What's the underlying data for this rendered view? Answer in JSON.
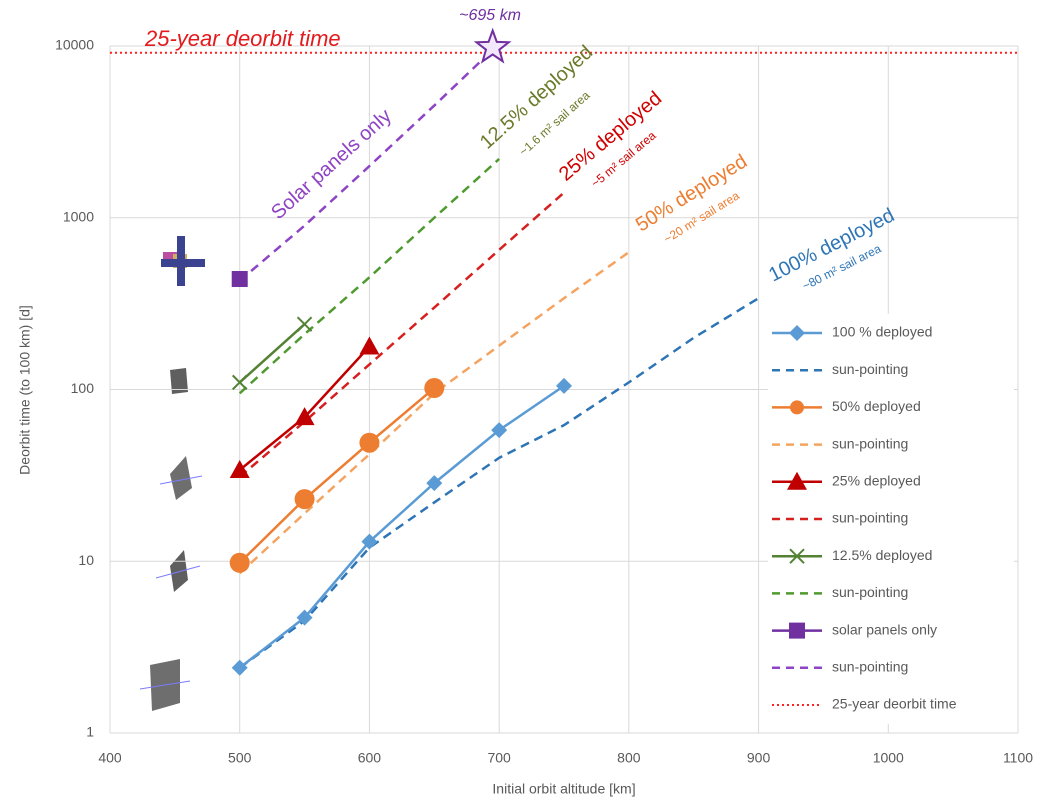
{
  "chart_data": {
    "type": "line",
    "y_label": "Deorbit time (to 100 km) [d]",
    "x_label": "Initial orbit altitude [km]",
    "xlim": [
      400,
      1100
    ],
    "xticks": [
      400,
      500,
      600,
      700,
      800,
      900,
      1000,
      1100
    ],
    "ylim": [
      1,
      10000
    ],
    "yticks": [
      1,
      10,
      100,
      1000,
      10000
    ],
    "log_y": true,
    "grid": true,
    "legend_position": "right",
    "series": [
      {
        "name": "100 % deployed",
        "color": "#5b9bd5",
        "dash": "solid",
        "marker": "diamond",
        "x": [
          500,
          550,
          600,
          650,
          700,
          750
        ],
        "values": [
          2.4,
          4.7,
          13,
          28.5,
          58,
          105
        ]
      },
      {
        "name": "sun-pointing",
        "color": "#2e75b6",
        "dash": "dashed",
        "marker": "none",
        "x": [
          500,
          550,
          600,
          650,
          700,
          750,
          800,
          850,
          900
        ],
        "values": [
          2.4,
          4.5,
          12,
          22,
          40,
          62,
          110,
          200,
          340
        ]
      },
      {
        "name": "50% deployed",
        "color": "#ed7d31",
        "dash": "solid",
        "marker": "circle",
        "x": [
          500,
          550,
          600,
          650
        ],
        "values": [
          9.8,
          23,
          49,
          102
        ]
      },
      {
        "name": "sun-pointing",
        "color": "#f4a460",
        "dash": "dashed",
        "marker": "none",
        "x": [
          500,
          550,
          600,
          650,
          700,
          750,
          800
        ],
        "values": [
          8.5,
          19,
          42,
          95,
          180,
          340,
          630
        ]
      },
      {
        "name": "25% deployed",
        "color": "#c00000",
        "dash": "solid",
        "marker": "triangle",
        "x": [
          500,
          550,
          600
        ],
        "values": [
          34,
          69,
          178
        ]
      },
      {
        "name": "sun-pointing",
        "color": "#d62020",
        "dash": "dashed",
        "marker": "none",
        "x": [
          500,
          550,
          600,
          650,
          700,
          750
        ],
        "values": [
          31,
          65,
          140,
          300,
          650,
          1400
        ]
      },
      {
        "name": "12.5% deployed",
        "color": "#548235",
        "dash": "solid",
        "marker": "x",
        "x": [
          500,
          550
        ],
        "values": [
          110,
          240
        ]
      },
      {
        "name": "sun-pointing",
        "color": "#4f9a2f",
        "dash": "dashed",
        "marker": "none",
        "x": [
          500,
          550,
          600,
          650,
          700
        ],
        "values": [
          95,
          210,
          450,
          1000,
          2200
        ]
      },
      {
        "name": "solar panels only",
        "color": "#7030a0",
        "dash": "solid",
        "marker": "square",
        "x": [
          500
        ],
        "values": [
          440
        ]
      },
      {
        "name": "sun-pointing",
        "color": "#8e44c4",
        "dash": "dashed",
        "marker": "none",
        "x": [
          500,
          550,
          600,
          650,
          695
        ],
        "values": [
          430,
          900,
          2000,
          4500,
          9500
        ]
      }
    ],
    "reference_line": {
      "name": "25-year deorbit time",
      "color": "#ff2020",
      "value": 9131
    },
    "highlight_point": {
      "x": 695,
      "y": 9800,
      "color": "#7030a0"
    },
    "annotations": [
      {
        "text": "25-year deorbit time",
        "color": "#e41a1c"
      },
      {
        "text": "~695 km",
        "color": "#7030a0"
      },
      {
        "text": "Solar panels only",
        "color": "#8e44c4"
      },
      {
        "text": "12.5% deployed",
        "color": "#6b7a2a"
      },
      {
        "text": "~1.6 m² sail area",
        "color": "#6b7a2a"
      },
      {
        "text": "25% deployed",
        "color": "#d00000"
      },
      {
        "text": "~5 m² sail area",
        "color": "#d00000"
      },
      {
        "text": "50% deployed",
        "color": "#ed7d31"
      },
      {
        "text": "~20 m² sail area",
        "color": "#ed7d31"
      },
      {
        "text": "100% deployed",
        "color": "#2e75b6"
      },
      {
        "text": "~80 m² sail area",
        "color": "#2e75b6"
      }
    ]
  }
}
